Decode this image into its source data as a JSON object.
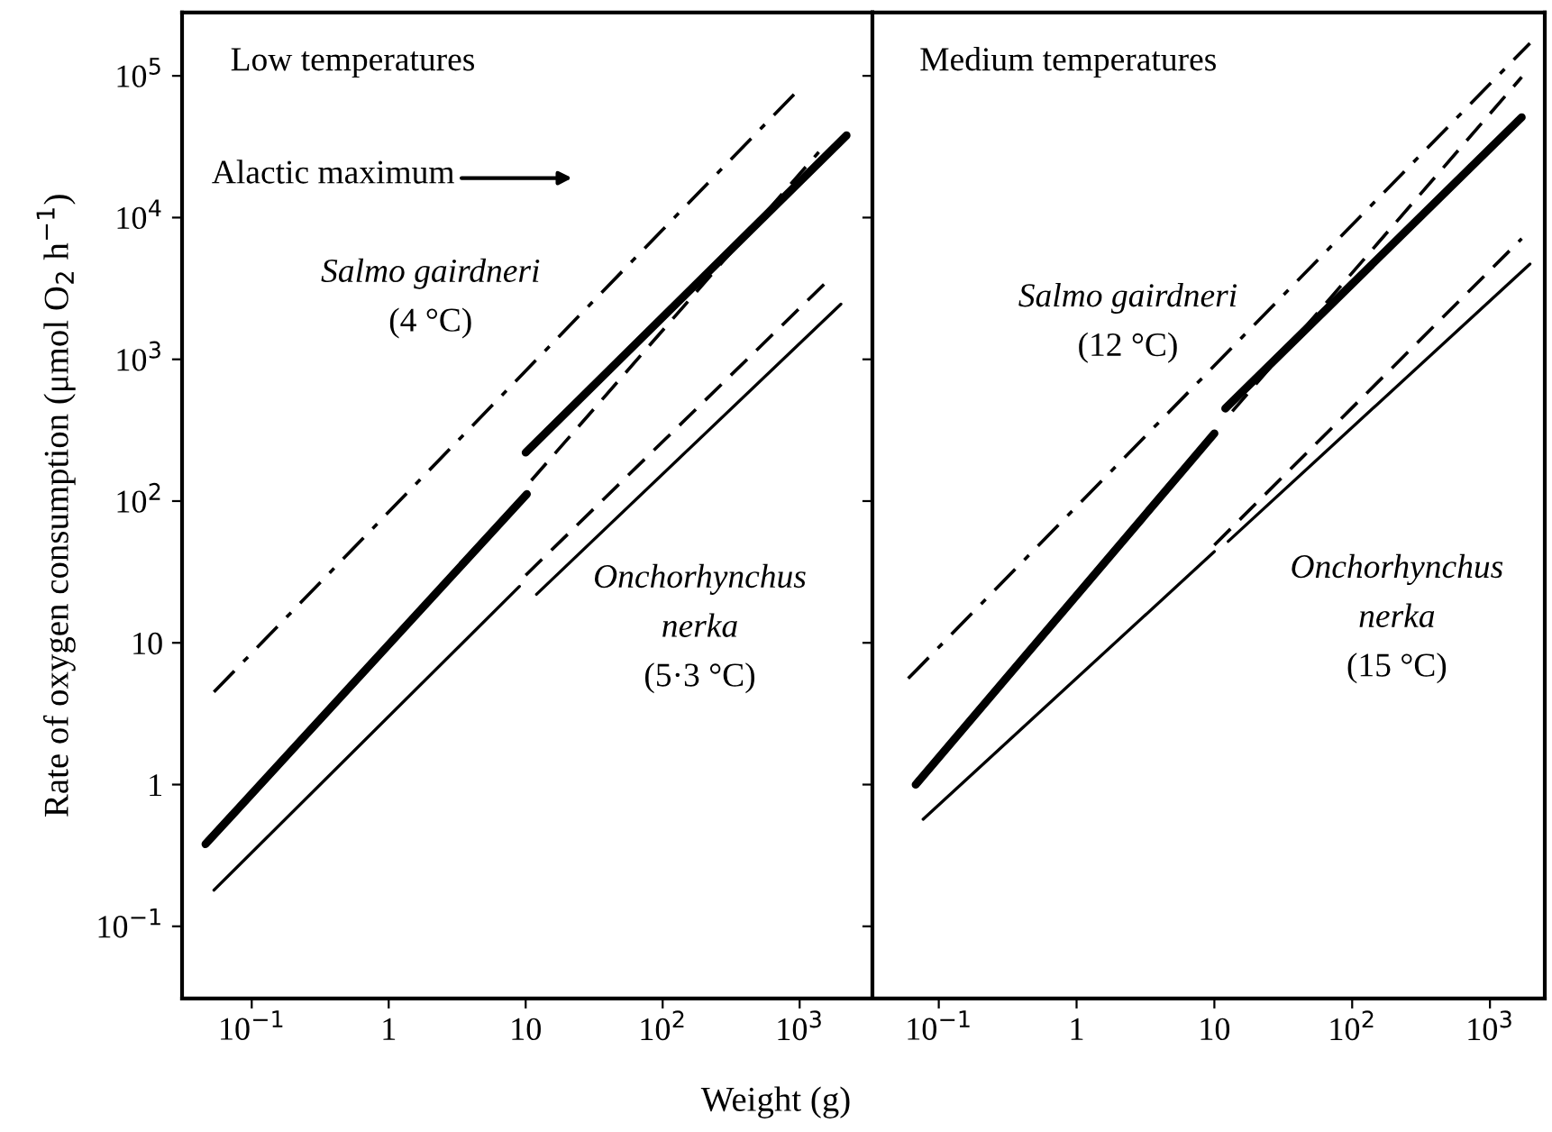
{
  "chart_data": [
    {
      "type": "line",
      "title": "Low temperatures",
      "xlabel": "Weight (g)",
      "ylabel": "Rate of oxygen consumption (μmol O$_{2}$ h$^{−1}$)",
      "log": "xy",
      "grid": false,
      "xlim": [
        0.031,
        3400
      ],
      "ylim": [
        0.031,
        280000
      ],
      "xticks": [
        {
          "value": 0.1,
          "label": "10$^{−1}$"
        },
        1,
        10,
        {
          "value": 100,
          "label": "10$^{2}$"
        },
        {
          "value": 1000,
          "label": "10$^{3}$"
        }
      ],
      "yticks": [
        {
          "value": 0.1,
          "label": "10$^{−1}$"
        },
        1,
        10,
        {
          "value": 100,
          "label": "10$^{2}$"
        },
        {
          "value": 1000,
          "label": "10$^{3}$"
        },
        {
          "value": 10000,
          "label": "10$^{4}$"
        },
        {
          "value": 100000,
          "label": "10$^{5}$"
        }
      ],
      "series": [
        {
          "color": "#000000",
          "line_style": "dashdot",
          "x": [
            0.053,
            910
          ],
          "values": [
            4.5,
            74000
          ]
        },
        {
          "color": "#000000",
          "line_style": "solid",
          "x": [
            0.046,
            10.2
          ],
          "values": [
            0.38,
            112
          ]
        },
        {
          "color": "#000000",
          "line_style": "solid",
          "x": [
            10,
            2200
          ],
          "values": [
            220,
            38000
          ]
        },
        {
          "color": "#000000",
          "line_style": "dashed",
          "x": [
            11,
            1380
          ],
          "values": [
            140,
            29000
          ]
        },
        {
          "color": "#000000",
          "line_style": "solid",
          "x": [
            0.053,
            9
          ],
          "values": [
            0.18,
            25
          ]
        },
        {
          "color": "#000000",
          "line_style": "dashed",
          "x": [
            10,
            1660
          ],
          "values": [
            30,
            3700
          ]
        },
        {
          "color": "#000000",
          "line_style": "solid",
          "x": [
            12,
            2000
          ],
          "values": [
            22,
            2450
          ]
        }
      ],
      "annotations": [
        "Alactic maximum",
        "Salmo gairdneri",
        "(4 °C)",
        "Onchorhynchus",
        "nerka",
        "(5·3 °C)"
      ]
    },
    {
      "type": "line",
      "title": "Medium temperatures",
      "log": "xy",
      "grid": false,
      "tick_labels": "x",
      "xlim": [
        0.033,
        2500
      ],
      "ylim": [
        0.031,
        280000
      ],
      "xticks": [
        {
          "value": 0.1,
          "label": "10$^{−1}$"
        },
        1,
        10,
        {
          "value": 100,
          "label": "10$^{2}$"
        },
        {
          "value": 1000,
          "label": "10$^{3}$"
        }
      ],
      "yticks": [
        {
          "value": 0.1,
          "label": null
        },
        {
          "value": 1,
          "label": null
        },
        {
          "value": 10,
          "label": null
        },
        {
          "value": 100,
          "label": null
        },
        {
          "value": 1000,
          "label": null
        },
        {
          "value": 10000,
          "label": null
        },
        {
          "value": 100000,
          "label": null
        }
      ],
      "series": [
        {
          "color": "#000000",
          "line_style": "dashdot",
          "x": [
            0.06,
            1950
          ],
          "values": [
            5.6,
            170000
          ]
        },
        {
          "color": "#000000",
          "line_style": "solid",
          "x": [
            0.068,
            10
          ],
          "values": [
            1.0,
            300
          ]
        },
        {
          "color": "#000000",
          "line_style": "solid",
          "x": [
            12,
            1700
          ],
          "values": [
            450,
            51000
          ]
        },
        {
          "color": "#000000",
          "line_style": "dashed",
          "x": [
            13.5,
            1700
          ],
          "values": [
            430,
            98000
          ]
        },
        {
          "color": "#000000",
          "line_style": "solid",
          "x": [
            0.077,
            10
          ],
          "values": [
            0.57,
            44
          ]
        },
        {
          "color": "#000000",
          "line_style": "dashed",
          "x": [
            10,
            1700
          ],
          "values": [
            49,
            7100
          ]
        },
        {
          "color": "#000000",
          "line_style": "solid",
          "x": [
            12.6,
            1950
          ],
          "values": [
            52,
            4700
          ]
        }
      ],
      "annotations": [
        "Salmo gairdneri",
        "(12 °C)",
        "Onchorhynchus",
        "nerka",
        "(15 °C)"
      ]
    }
  ]
}
